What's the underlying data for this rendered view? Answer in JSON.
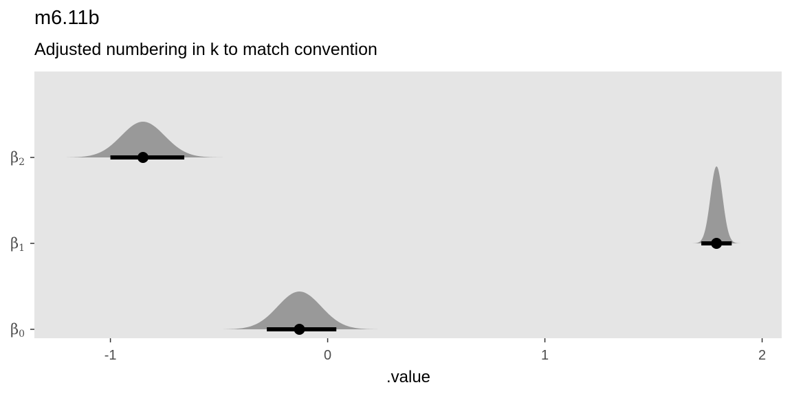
{
  "title": "m6.11b",
  "subtitle": "Adjusted numbering in k to match convention",
  "chart_data": {
    "type": "halfeye",
    "title": "m6.11b",
    "subtitle": "Adjusted numbering in k to match convention",
    "xlabel": ".value",
    "ylabel": "",
    "xlim": [
      -1.35,
      2.09
    ],
    "x_ticks": [
      -1,
      0,
      1,
      2
    ],
    "x_tick_labels": [
      "-1",
      "0",
      "1",
      "2"
    ],
    "grid": false,
    "panel_background": "#e5e5e5",
    "density_color": "#999999",
    "interval_color": "#000000",
    "parameters": [
      {
        "label": "β",
        "sub": "0",
        "point": -0.13,
        "interval": [
          -0.28,
          0.04
        ],
        "density_range": [
          -0.48,
          0.23
        ],
        "density_peak": -0.13,
        "density_sd": 0.1
      },
      {
        "label": "β",
        "sub": "1",
        "point": 1.79,
        "interval": [
          1.72,
          1.86
        ],
        "density_range": [
          1.63,
          1.93
        ],
        "density_peak": 1.79,
        "density_sd": 0.028
      },
      {
        "label": "β",
        "sub": "2",
        "point": -0.85,
        "interval": [
          -1.0,
          -0.66
        ],
        "density_range": [
          -1.2,
          -0.48
        ],
        "density_peak": -0.85,
        "density_sd": 0.1
      }
    ]
  }
}
